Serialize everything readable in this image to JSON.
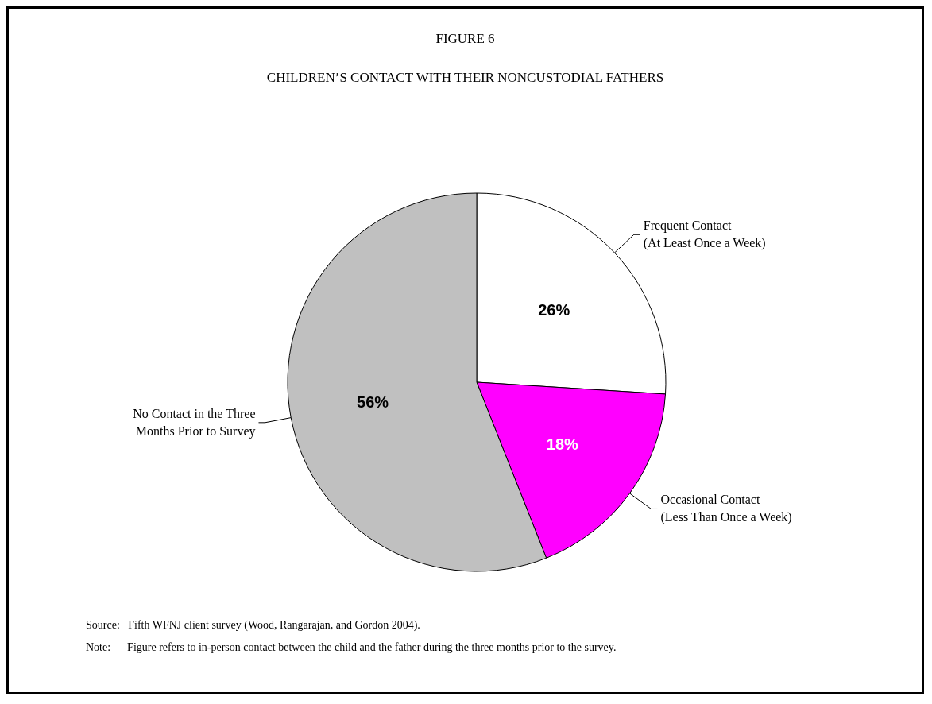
{
  "chart_data": {
    "type": "pie",
    "title": "FIGURE 6",
    "subtitle": "CHILDREN’S CONTACT WITH THEIR NONCUSTODIAL FATHERS",
    "categories": [
      "Frequent Contact\n(At Least Once a Week)",
      "Occasional Contact\n(Less Than Once a Week)",
      "No Contact in the Three\nMonths Prior to Survey"
    ],
    "values": [
      26,
      18,
      56
    ],
    "colors": [
      "#ffffff",
      "#ff00ff",
      "#c0c0c0"
    ],
    "value_labels": [
      "26%",
      "18%",
      "56%"
    ],
    "annotations": [
      "Source:   Fifth WFNJ client survey (Wood, Rangarajan, and Gordon 2004).",
      "Note:      Figure refers to in-person contact between the child and the father during the three months prior to the survey."
    ]
  }
}
